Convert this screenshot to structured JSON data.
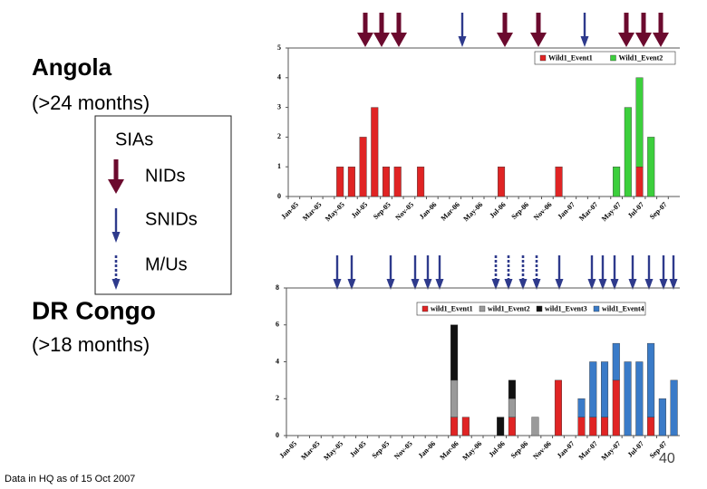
{
  "labels": {
    "legend_title": "SIAs",
    "legend_items": [
      "NIDs",
      "SNIDs",
      "M/Us"
    ],
    "footnote": "Data in HQ as of 15 Oct 2007",
    "page_number": "40"
  },
  "chart_data": [
    {
      "type": "bar",
      "stacked": true,
      "title": "Angola",
      "subtitle": "(>24 months)",
      "categories": [
        "Jan-05",
        null,
        "Mar-05",
        null,
        "May-05",
        null,
        "Jul-05",
        null,
        "Sep-05",
        null,
        "Nov-05",
        null,
        "Jan-06",
        null,
        "Mar-06",
        null,
        "May-06",
        null,
        "Jul-06",
        null,
        "Sep-06",
        null,
        "Nov-06",
        null,
        "Jan-07",
        null,
        "Mar-07",
        null,
        "May-07",
        null,
        "Jul-07",
        null,
        "Sep-07",
        null
      ],
      "series": [
        {
          "name": "Wild1_Event1",
          "color": "#e02424",
          "values": [
            null,
            null,
            null,
            null,
            1,
            1,
            2,
            3,
            1,
            1,
            null,
            1,
            null,
            null,
            null,
            null,
            null,
            null,
            1,
            null,
            null,
            null,
            null,
            1,
            null,
            null,
            null,
            null,
            null,
            null,
            1,
            null,
            null,
            null
          ]
        },
        {
          "name": "Wild1_Event2",
          "color": "#3ccf3c",
          "values": [
            null,
            null,
            null,
            null,
            null,
            null,
            null,
            null,
            null,
            null,
            null,
            null,
            null,
            null,
            null,
            null,
            null,
            null,
            null,
            null,
            null,
            null,
            null,
            null,
            null,
            null,
            null,
            null,
            1,
            3,
            3,
            2,
            null,
            null
          ]
        }
      ],
      "ylim": [
        0,
        5
      ],
      "yticks": [
        0,
        1,
        2,
        3,
        4,
        5
      ]
    },
    {
      "type": "bar",
      "stacked": true,
      "title": "DR Congo",
      "subtitle": "(>18 months)",
      "categories": [
        "Jan-05",
        null,
        "Mar-05",
        null,
        "May-05",
        null,
        "Jul-05",
        null,
        "Sep-05",
        null,
        "Nov-05",
        null,
        "Jan-06",
        null,
        "Mar-06",
        null,
        "May-06",
        null,
        "Jul-06",
        null,
        "Sep-06",
        null,
        "Nov-06",
        null,
        "Jan-07",
        null,
        "Mar-07",
        null,
        "May-07",
        null,
        "Jul-07",
        null,
        "Sep-07",
        null
      ],
      "series": [
        {
          "name": "wild1_Event1",
          "color": "#e02424",
          "values": [
            null,
            null,
            null,
            null,
            null,
            null,
            null,
            null,
            null,
            null,
            null,
            null,
            null,
            null,
            1,
            1,
            null,
            null,
            null,
            1,
            null,
            null,
            null,
            3,
            null,
            1,
            1,
            1,
            3,
            null,
            null,
            1,
            null,
            null
          ]
        },
        {
          "name": "wild1_Event2",
          "color": "#9a9a9a",
          "values": [
            null,
            null,
            null,
            null,
            null,
            null,
            null,
            null,
            null,
            null,
            null,
            null,
            null,
            null,
            2,
            null,
            null,
            null,
            null,
            1,
            null,
            1,
            null,
            null,
            null,
            null,
            null,
            null,
            null,
            null,
            null,
            null,
            null,
            null
          ]
        },
        {
          "name": "wild1_Event3",
          "color": "#111111",
          "values": [
            null,
            null,
            null,
            null,
            null,
            null,
            null,
            null,
            null,
            null,
            null,
            null,
            null,
            null,
            3,
            null,
            null,
            null,
            1,
            1,
            null,
            null,
            null,
            null,
            null,
            null,
            null,
            null,
            null,
            null,
            null,
            null,
            null,
            null
          ]
        },
        {
          "name": "wild1_Event4",
          "color": "#3a7bc8",
          "values": [
            null,
            null,
            null,
            null,
            null,
            null,
            null,
            null,
            null,
            null,
            null,
            null,
            null,
            null,
            null,
            null,
            null,
            null,
            null,
            null,
            null,
            null,
            null,
            null,
            null,
            1,
            3,
            3,
            2,
            4,
            4,
            4,
            2,
            3
          ]
        }
      ],
      "ylim": [
        0,
        8
      ],
      "yticks": [
        0,
        2,
        4,
        6,
        8
      ]
    }
  ]
}
